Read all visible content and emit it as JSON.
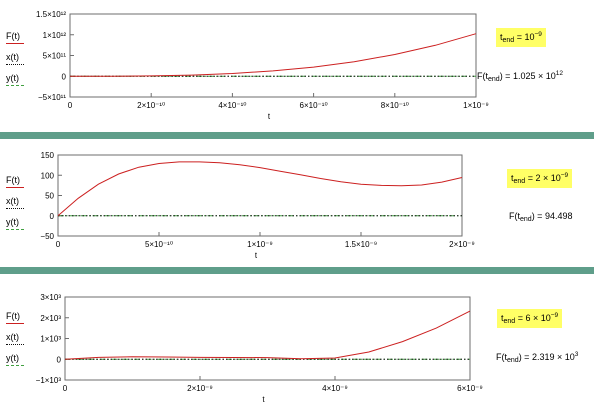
{
  "chart_data": [
    {
      "type": "line",
      "xlabel": "t",
      "xlim": [
        0,
        1e-09
      ],
      "ylim": [
        -500000000000.0,
        1500000000000.0
      ],
      "x_ticks": [
        "0",
        "2×10⁻¹⁰",
        "4×10⁻¹⁰",
        "6×10⁻¹⁰",
        "8×10⁻¹⁰",
        "1×10⁻⁹"
      ],
      "y_ticks": [
        "1.5×10¹²",
        "1×10¹²",
        "5×10¹¹",
        "0",
        "−5×10¹¹"
      ],
      "x_tick_values": [
        0,
        2e-10,
        4e-10,
        6e-10,
        8e-10,
        1e-09
      ],
      "y_tick_values": [
        1500000000000.0,
        1000000000000.0,
        500000000000.0,
        0,
        -500000000000.0
      ],
      "series": [
        {
          "name": "F(t)",
          "style": "solid",
          "color": "#cc2020",
          "x": [
            0,
            1e-10,
            2e-10,
            3e-10,
            4e-10,
            5e-10,
            6e-10,
            7e-10,
            8e-10,
            9e-10,
            1e-09
          ],
          "y": [
            0,
            1000000000.0,
            8000000000.0,
            28000000000.0,
            66000000000.0,
            128000000000.0,
            220000000000.0,
            350000000000.0,
            525000000000.0,
            745000000000.0,
            1025000000000.0
          ]
        },
        {
          "name": "x(t)",
          "style": "dotted",
          "color": "#101010",
          "x": [
            0,
            1e-09
          ],
          "y": [
            0,
            0
          ]
        },
        {
          "name": "y(t)",
          "style": "dashdot",
          "color": "#40a040",
          "x": [
            0,
            1e-09
          ],
          "y": [
            0,
            0
          ]
        }
      ],
      "t_end_label": "t",
      "t_end_sub": "end",
      "t_end_value": "10",
      "t_end_exp": "−9",
      "result_prefix": "F(t",
      "result_sub": "end",
      "result_value": ") = 1.025 × 10",
      "result_exp": "12"
    },
    {
      "type": "line",
      "xlabel": "t",
      "xlim": [
        0,
        2e-09
      ],
      "ylim": [
        -50,
        150
      ],
      "x_ticks": [
        "0",
        "5×10⁻¹⁰",
        "1×10⁻⁹",
        "1.5×10⁻⁹",
        "2×10⁻⁹"
      ],
      "y_ticks": [
        "150",
        "100",
        "50",
        "0",
        "−50"
      ],
      "x_tick_values": [
        0,
        5e-10,
        1e-09,
        1.5e-09,
        2e-09
      ],
      "y_tick_values": [
        150,
        100,
        50,
        0,
        -50
      ],
      "series": [
        {
          "name": "F(t)",
          "style": "solid",
          "color": "#cc2020",
          "x": [
            0,
            1e-10,
            2e-10,
            3e-10,
            4e-10,
            5e-10,
            6e-10,
            7e-10,
            8e-10,
            9e-10,
            1e-09,
            1.1e-09,
            1.2e-09,
            1.3e-09,
            1.4e-09,
            1.5e-09,
            1.6e-09,
            1.7e-09,
            1.8e-09,
            1.9e-09,
            2e-09
          ],
          "y": [
            0,
            43,
            78,
            103,
            120,
            129,
            133,
            133,
            131,
            126,
            119,
            110,
            101,
            92,
            84,
            78,
            75,
            74,
            76,
            83,
            94.5
          ]
        },
        {
          "name": "x(t)",
          "style": "dotted",
          "color": "#101010",
          "x": [
            0,
            2e-09
          ],
          "y": [
            0,
            0
          ]
        },
        {
          "name": "y(t)",
          "style": "dashdot",
          "color": "#40a040",
          "x": [
            0,
            2e-09
          ],
          "y": [
            0,
            0
          ]
        }
      ],
      "t_end_label": "t",
      "t_end_sub": "end",
      "t_end_value": "2 × 10",
      "t_end_exp": "−9",
      "result_prefix": "F(t",
      "result_sub": "end",
      "result_value": ") = 94.498",
      "result_exp": ""
    },
    {
      "type": "line",
      "xlabel": "t",
      "xlim": [
        0,
        6e-09
      ],
      "ylim": [
        -1000,
        3000
      ],
      "x_ticks": [
        "0",
        "2×10⁻⁹",
        "4×10⁻⁹",
        "6×10⁻⁹"
      ],
      "y_ticks": [
        "3×10³",
        "2×10³",
        "1×10³",
        "0",
        "−1×10³"
      ],
      "x_tick_values": [
        0,
        2e-09,
        4e-09,
        6e-09
      ],
      "y_tick_values": [
        3000,
        2000,
        1000,
        0,
        -1000
      ],
      "series": [
        {
          "name": "F(t)",
          "style": "solid",
          "color": "#cc2020",
          "x": [
            0,
            5e-10,
            1e-09,
            1.5e-09,
            2e-09,
            2.5e-09,
            3e-09,
            3.5e-09,
            4e-09,
            4.5e-09,
            5e-09,
            5.5e-09,
            6e-09
          ],
          "y": [
            0,
            90,
            120,
            110,
            90,
            85,
            80,
            20,
            60,
            350,
            850,
            1500,
            2319
          ]
        },
        {
          "name": "x(t)",
          "style": "dotted",
          "color": "#101010",
          "x": [
            0,
            6e-09
          ],
          "y": [
            0,
            0
          ]
        },
        {
          "name": "y(t)",
          "style": "dashdot",
          "color": "#40a040",
          "x": [
            0,
            6e-09
          ],
          "y": [
            0,
            0
          ]
        }
      ],
      "t_end_label": "t",
      "t_end_sub": "end",
      "t_end_value": "6 × 10",
      "t_end_exp": "−9",
      "result_prefix": "F(t",
      "result_sub": "end",
      "result_value": ") = 2.319 × 10",
      "result_exp": "3"
    }
  ]
}
